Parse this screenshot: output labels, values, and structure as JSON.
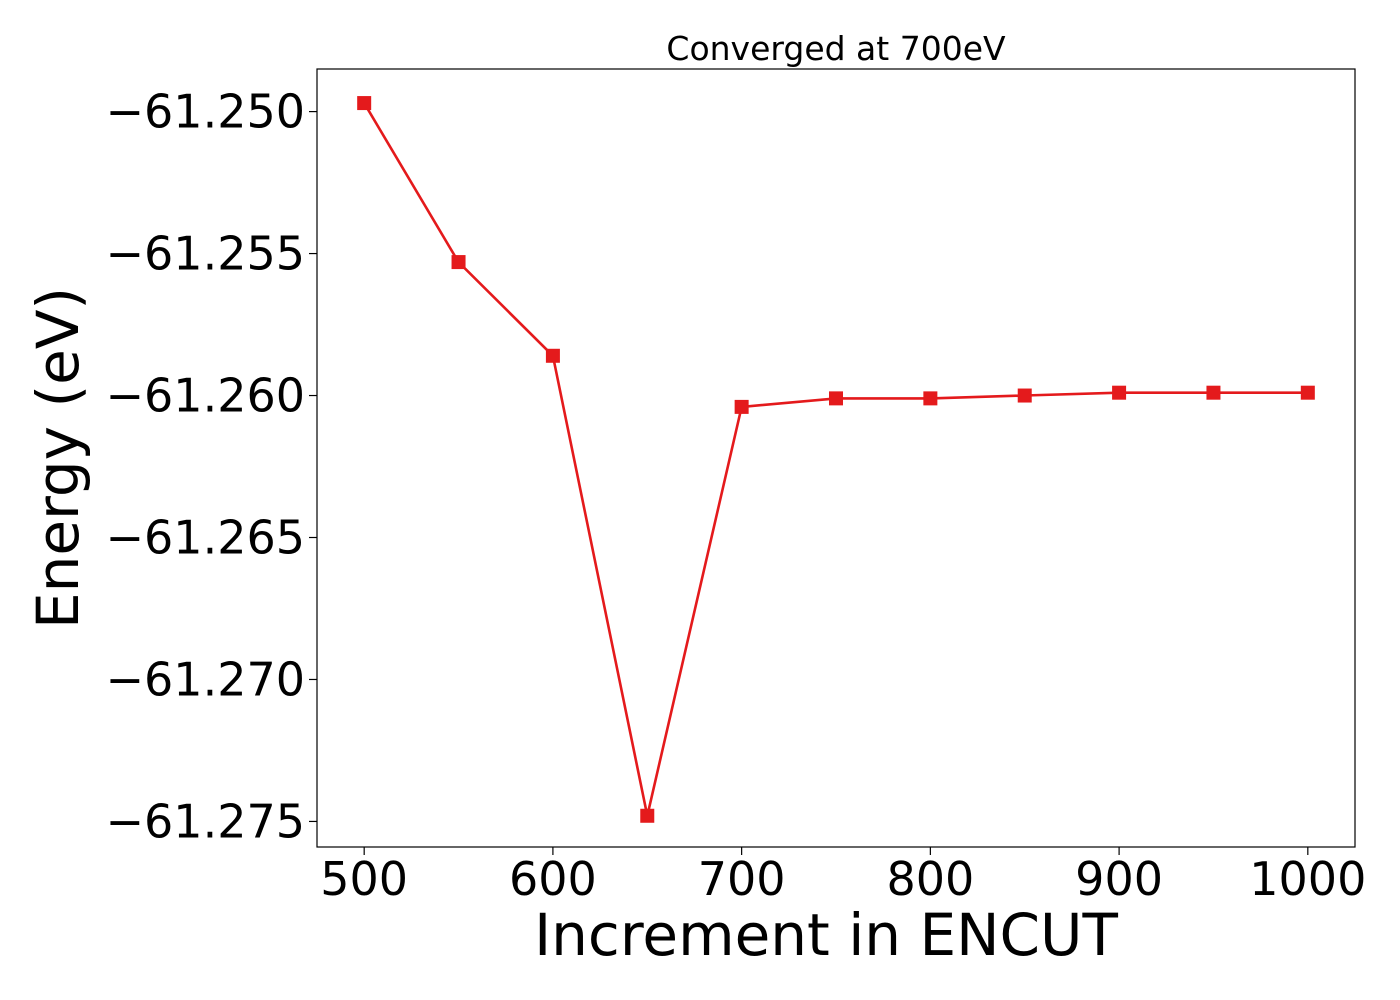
{
  "chart_data": {
    "type": "line",
    "title": "Converged at 700eV",
    "xlabel": "Increment in ENCUT",
    "ylabel": "Energy (eV)",
    "xlim": [
      475,
      1025
    ],
    "ylim": [
      -61.2759,
      -61.2485
    ],
    "xticks": [
      500,
      600,
      700,
      800,
      900,
      1000
    ],
    "yticks": [
      -61.25,
      -61.255,
      -61.26,
      -61.265,
      -61.27,
      -61.275
    ],
    "ytick_labels": [
      "−61.250",
      "−61.255",
      "−61.260",
      "−61.265",
      "−61.270",
      "−61.275"
    ],
    "grid": false,
    "series": [
      {
        "color": "#e41a1c",
        "marker": "square",
        "x": [
          500,
          550,
          600,
          650,
          700,
          750,
          800,
          850,
          900,
          950,
          1000
        ],
        "y": [
          -61.2497,
          -61.2553,
          -61.2586,
          -61.2748,
          -61.2604,
          -61.2601,
          -61.2601,
          -61.26,
          -61.2599,
          -61.2599,
          -61.2599
        ]
      }
    ]
  }
}
